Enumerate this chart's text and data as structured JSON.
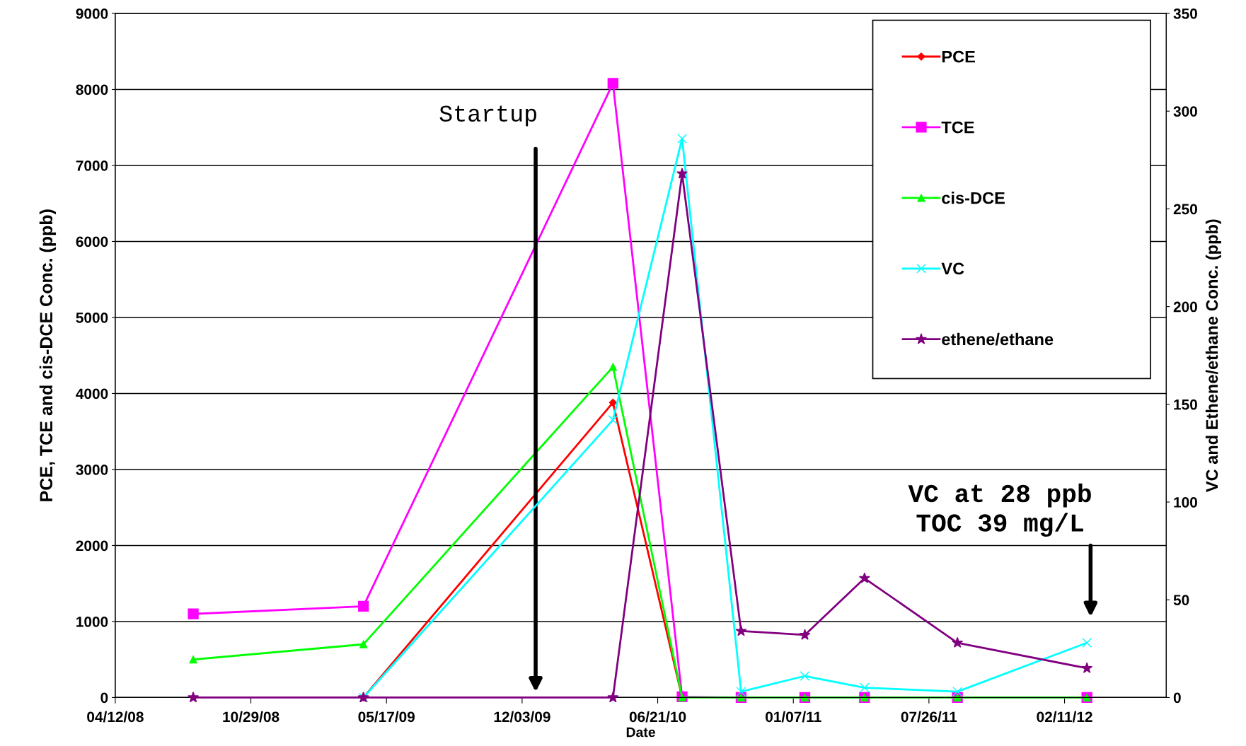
{
  "chart_data": {
    "type": "line",
    "xlabel": "Date",
    "ylabel": "PCE, TCE and cis-DCE Conc. (ppb)",
    "y2label": "VC and Ethene/ethane Conc. (ppb)",
    "x": [
      "2008-08-05",
      "2009-04-13",
      "2010-04-16",
      "2010-07-27",
      "2010-10-22",
      "2011-01-24",
      "2011-04-22",
      "2011-09-06",
      "2012-03-15"
    ],
    "series": [
      {
        "name": "PCE",
        "color": "#ff0000",
        "marker": "diamond",
        "values": [
          null,
          0,
          3880,
          0,
          null,
          null,
          null,
          null,
          null
        ]
      },
      {
        "name": "TCE",
        "color": "#ff00ff",
        "marker": "square",
        "values": [
          1100,
          1200,
          8080,
          10,
          0,
          0,
          0,
          0,
          0
        ]
      },
      {
        "name": "cis-DCE",
        "color": "#00ff00",
        "marker": "triangle",
        "values": [
          500,
          700,
          4350,
          0,
          0,
          0,
          0,
          0,
          0
        ]
      },
      {
        "name": "VC",
        "color": "#00ffff",
        "marker": "cross",
        "axis": "y2",
        "values": [
          null,
          0,
          142,
          286,
          3,
          11,
          5,
          3,
          28
        ]
      },
      {
        "name": "ethene/ethane",
        "color": "#800080",
        "marker": "star",
        "axis": "y2",
        "values": [
          0,
          0,
          0,
          268,
          34,
          32,
          61,
          28,
          15
        ]
      }
    ],
    "xlim": [
      "2008-04-12",
      "2012-07-10"
    ],
    "xticks": [
      {
        "value": "2008-04-12",
        "label": "04/12/08"
      },
      {
        "value": "2008-10-29",
        "label": "10/29/08"
      },
      {
        "value": "2009-05-17",
        "label": "05/17/09"
      },
      {
        "value": "2009-12-03",
        "label": "12/03/09"
      },
      {
        "value": "2010-06-21",
        "label": "06/21/10"
      },
      {
        "value": "2011-01-07",
        "label": "01/07/11"
      },
      {
        "value": "2011-07-26",
        "label": "07/26/11"
      },
      {
        "value": "2012-02-11",
        "label": "02/11/12"
      }
    ],
    "ylim": [
      0,
      9000
    ],
    "yticks": [
      0,
      1000,
      2000,
      3000,
      4000,
      5000,
      6000,
      7000,
      8000,
      9000
    ],
    "y2lim": [
      0,
      350
    ],
    "y2ticks": [
      0,
      50,
      100,
      150,
      200,
      250,
      300,
      350
    ],
    "grid": "y",
    "legend": "top right",
    "annotations": [
      "Startup",
      "VC at 28 ppb\nTOC 39 mg/L"
    ]
  }
}
